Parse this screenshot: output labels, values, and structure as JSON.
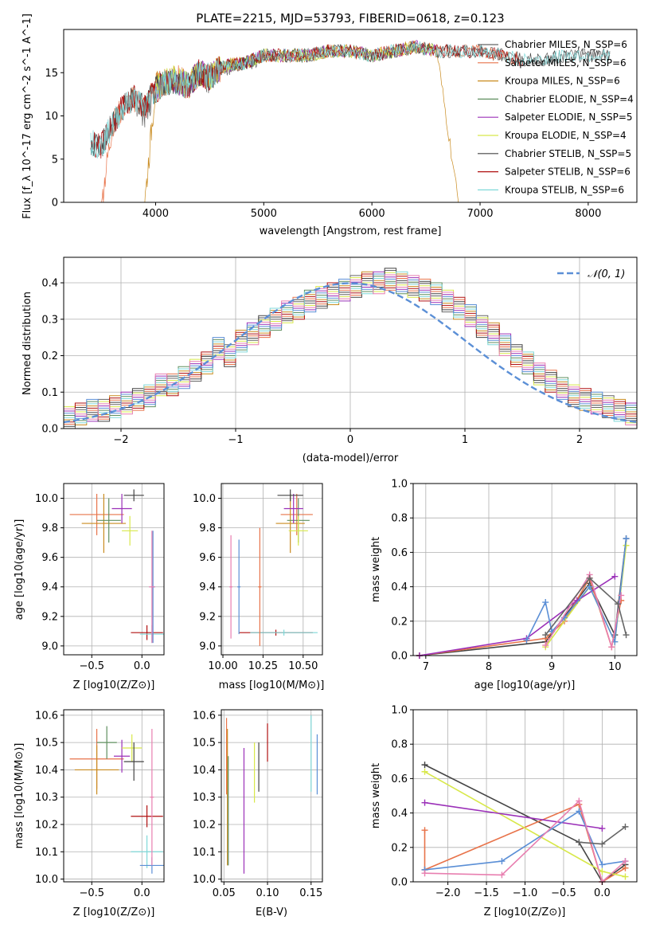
{
  "colors": {
    "axis": "#000000",
    "grid": "#b0b0b0",
    "normal_curve": "#5b8fd6",
    "series": [
      "#666666",
      "#e8734a",
      "#c98b1f",
      "#5f8f5f",
      "#9b30b8",
      "#d8e84a",
      "#444444",
      "#b01010",
      "#7fd8d8",
      "#5b8fd6",
      "#e87fb0"
    ]
  },
  "chart_data": [
    {
      "id": "spectrum",
      "type": "line",
      "title": "PLATE=2215, MJD=53793, FIBERID=0618, z=0.123",
      "xlabel": "wavelength [Angstrom, rest frame]",
      "ylabel": "Flux [f_λ 10^-17 erg cm^-2 s^-1 A^-1]",
      "xlim": [
        3150,
        8450
      ],
      "ylim": [
        0,
        20
      ],
      "xticks": [
        "4000",
        "5000",
        "6000",
        "7000",
        "8000"
      ],
      "yticks": [
        "0",
        "5",
        "10",
        "15"
      ],
      "grid": false,
      "legend_position": "top-right",
      "x": [
        3400,
        3500,
        3600,
        3700,
        3800,
        3900,
        4000,
        4100,
        4200,
        4300,
        4400,
        4500,
        4600,
        4700,
        4800,
        4900,
        5000,
        5200,
        5400,
        5600,
        5800,
        6000,
        6200,
        6400,
        6600,
        6800,
        7000,
        7200,
        7400,
        7600,
        7800,
        8000,
        8200
      ],
      "series": [
        {
          "name": "Chabrier MILES, N_SSP=6",
          "values": [
            7,
            6.5,
            9,
            11,
            12,
            10,
            13,
            14,
            14,
            13,
            15,
            14,
            15.5,
            15.5,
            16,
            16,
            17,
            17,
            17,
            17.5,
            17.5,
            17,
            17.5,
            18,
            17.5,
            17.5,
            17.5,
            17,
            16.5,
            16.5,
            17,
            17,
            17
          ]
        },
        {
          "name": "Salpeter MILES, N_SSP=6",
          "values": [
            null,
            0,
            9,
            11,
            12,
            11,
            13.5,
            14,
            14.5,
            13.5,
            15,
            14.5,
            15.5,
            16,
            16,
            16.5,
            17,
            17,
            17,
            17.5,
            17.5,
            17,
            17.5,
            18,
            17.5,
            17.5,
            17.5,
            17,
            16.5,
            null,
            null,
            null,
            null
          ]
        },
        {
          "name": "Kroupa MILES, N_SSP=6",
          "values": [
            null,
            null,
            null,
            null,
            null,
            0,
            13.5,
            14,
            14.5,
            13.5,
            15,
            14.5,
            15.5,
            16,
            16,
            16.5,
            17,
            17,
            17,
            17.5,
            17.5,
            17,
            17.5,
            18,
            17.5,
            0,
            null,
            null,
            null,
            null,
            null,
            null,
            null
          ]
        },
        {
          "name": "Chabrier ELODIE, N_SSP=4",
          "values": [
            null,
            null,
            null,
            null,
            null,
            null,
            13,
            14,
            14,
            13.5,
            15,
            14.5,
            15.5,
            16,
            16,
            16.5,
            17,
            17,
            17,
            17.5,
            17.5,
            17,
            17.5,
            18,
            17.5,
            null,
            null,
            null,
            null,
            null,
            null,
            null,
            null
          ]
        },
        {
          "name": "Salpeter ELODIE, N_SSP=5",
          "values": [
            null,
            null,
            null,
            null,
            null,
            null,
            13,
            14,
            14,
            13.5,
            15,
            14.5,
            15.5,
            16,
            16,
            16.5,
            17,
            17,
            17,
            17.5,
            17.5,
            17,
            17.5,
            18,
            17.5,
            null,
            null,
            null,
            null,
            null,
            null,
            null,
            null
          ]
        },
        {
          "name": "Kroupa ELODIE, N_SSP=4",
          "values": [
            null,
            null,
            null,
            null,
            null,
            null,
            13.5,
            14,
            14.5,
            13.5,
            15,
            14.5,
            15.5,
            16,
            16,
            16.5,
            17,
            17,
            17,
            17.5,
            17.5,
            17,
            17.5,
            18,
            17.5,
            null,
            null,
            null,
            null,
            null,
            null,
            null,
            null
          ]
        },
        {
          "name": "Chabrier STELIB, N_SSP=5",
          "values": [
            7,
            6.5,
            9,
            11,
            12,
            11,
            13,
            14,
            14,
            13.5,
            15,
            14.5,
            15.5,
            16,
            16,
            16.5,
            17,
            17,
            17,
            17.5,
            17.5,
            17,
            17.5,
            18,
            17.5,
            17.5,
            17.5,
            17,
            16.5,
            16.5,
            17,
            17,
            17
          ]
        },
        {
          "name": "Salpeter STELIB, N_SSP=6",
          "values": [
            7,
            6.5,
            9,
            11,
            12,
            11,
            13,
            14,
            14,
            13.5,
            15,
            14.5,
            15.5,
            16,
            16,
            16.5,
            17,
            17,
            17,
            17.5,
            17.5,
            17,
            17.5,
            18,
            17.5,
            17.5,
            17.5,
            17,
            16.5,
            null,
            null,
            null,
            null
          ]
        },
        {
          "name": "Kroupa STELIB, N_SSP=6",
          "values": [
            7,
            6.5,
            9,
            11,
            12,
            11,
            13,
            14,
            14,
            13.5,
            15,
            14.5,
            15.5,
            16,
            16,
            16.5,
            17,
            17,
            17,
            17.5,
            17.5,
            17,
            17.5,
            18,
            17.5,
            17.5,
            17.5,
            17,
            16.5,
            16.5,
            17,
            17,
            17
          ]
        }
      ]
    },
    {
      "id": "residuals",
      "type": "line",
      "xlabel": "(data-model)/error",
      "ylabel": "Normed distribution",
      "xlim": [
        -2.5,
        2.5
      ],
      "ylim": [
        0,
        0.47
      ],
      "xticks": [
        "−2",
        "−1",
        "0",
        "1",
        "2"
      ],
      "yticks": [
        "0.0",
        "0.1",
        "0.2",
        "0.3",
        "0.4"
      ],
      "grid": true,
      "legend_position": "top-right",
      "legend": [
        "𝒩(0, 1)"
      ],
      "normal_mean": 0,
      "normal_sigma": 1,
      "bin_width": 0.1,
      "bin_start": -2.5,
      "histogram": [
        0.03,
        0.04,
        0.05,
        0.05,
        0.06,
        0.07,
        0.08,
        0.09,
        0.12,
        0.12,
        0.14,
        0.16,
        0.18,
        0.22,
        0.2,
        0.24,
        0.26,
        0.28,
        0.3,
        0.32,
        0.33,
        0.35,
        0.36,
        0.37,
        0.38,
        0.39,
        0.4,
        0.4,
        0.41,
        0.4,
        0.39,
        0.38,
        0.37,
        0.35,
        0.33,
        0.31,
        0.28,
        0.26,
        0.23,
        0.2,
        0.18,
        0.15,
        0.13,
        0.11,
        0.09,
        0.08,
        0.07,
        0.06,
        0.05,
        0.04
      ]
    },
    {
      "id": "age-vs-Z",
      "type": "scatter",
      "xlabel": "Z [log10(Z/Z⊙)]",
      "ylabel": "age [log10(age/yr)]",
      "xlim": [
        -0.78,
        0.22
      ],
      "ylim": [
        8.94,
        10.1
      ],
      "xticks": [
        "−0.5",
        "0.0"
      ],
      "yticks": [
        "9.0",
        "9.2",
        "9.4",
        "9.6",
        "9.8",
        "10.0"
      ],
      "grid": true,
      "points": [
        {
          "x": -0.45,
          "y": 9.89,
          "xerr": 0.27,
          "yerr": 0.14
        },
        {
          "x": -0.38,
          "y": 9.83,
          "xerr": 0.22,
          "yerr": 0.2
        },
        {
          "x": -0.33,
          "y": 9.85,
          "xerr": 0.12,
          "yerr": 0.15
        },
        {
          "x": -0.2,
          "y": 9.93,
          "xerr": 0.1,
          "yerr": 0.1
        },
        {
          "x": -0.12,
          "y": 9.78,
          "xerr": 0.08,
          "yerr": 0.1
        },
        {
          "x": -0.08,
          "y": 10.02,
          "xerr": 0.1,
          "yerr": 0.04
        },
        {
          "x": 0.05,
          "y": 9.09,
          "xerr": 0.16,
          "yerr": 0.05
        },
        {
          "x": 0.1,
          "y": 9.08,
          "xerr": 0.12,
          "yerr": 0.06
        },
        {
          "x": 0.11,
          "y": 9.4,
          "xerr": 0.02,
          "yerr": 0.38
        },
        {
          "x": 0.1,
          "y": 9.4,
          "xerr": 0.03,
          "yerr": 0.38
        }
      ]
    },
    {
      "id": "age-vs-mass",
      "type": "scatter",
      "xlabel": "mass [log10(M/M⊙)]",
      "ylabel": "",
      "xlim": [
        9.99,
        10.62
      ],
      "ylim": [
        8.94,
        10.1
      ],
      "xticks": [
        "10.00",
        "10.25",
        "10.50"
      ],
      "yticks": [
        "9.0",
        "9.2",
        "9.4",
        "9.6",
        "9.8",
        "10.0"
      ],
      "grid": true,
      "points": [
        {
          "x": 10.46,
          "y": 9.89,
          "xerr": 0.1,
          "yerr": 0.14
        },
        {
          "x": 10.42,
          "y": 9.83,
          "xerr": 0.09,
          "yerr": 0.2
        },
        {
          "x": 10.47,
          "y": 9.85,
          "xerr": 0.07,
          "yerr": 0.15
        },
        {
          "x": 10.44,
          "y": 9.93,
          "xerr": 0.06,
          "yerr": 0.1
        },
        {
          "x": 10.47,
          "y": 9.78,
          "xerr": 0.06,
          "yerr": 0.1
        },
        {
          "x": 10.42,
          "y": 10.02,
          "xerr": 0.08,
          "yerr": 0.04
        },
        {
          "x": 10.33,
          "y": 9.09,
          "xerr": 0.23,
          "yerr": 0.02
        },
        {
          "x": 10.38,
          "y": 9.09,
          "xerr": 0.21,
          "yerr": 0.02
        },
        {
          "x": 10.1,
          "y": 9.4,
          "xerr": 0.01,
          "yerr": 0.32
        },
        {
          "x": 10.05,
          "y": 9.4,
          "xerr": 0.01,
          "yerr": 0.35
        },
        {
          "x": 10.23,
          "y": 9.4,
          "xerr": 0.01,
          "yerr": 0.4
        }
      ]
    },
    {
      "id": "weight-vs-age",
      "type": "line",
      "xlabel": "age [log10(age/yr)]",
      "ylabel": "mass weight",
      "xlim": [
        6.8,
        10.35
      ],
      "ylim": [
        0,
        1
      ],
      "xticks": [
        "7",
        "8",
        "9",
        "10"
      ],
      "yticks": [
        "0.0",
        "0.2",
        "0.4",
        "0.6",
        "0.8",
        "1.0"
      ],
      "grid": true,
      "series": [
        {
          "x": [
            6.9,
            8.9,
            9.6,
            10.0,
            10.18
          ],
          "values": [
            0.0,
            0.08,
            0.42,
            0.12,
            0.68
          ]
        },
        {
          "x": [
            6.9,
            8.9,
            9.2,
            9.6,
            9.95,
            10.1
          ],
          "values": [
            0.0,
            0.1,
            0.2,
            0.45,
            0.05,
            0.32
          ]
        },
        {
          "x": [
            8.9,
            9.6,
            10.0,
            10.18
          ],
          "values": [
            0.05,
            0.4,
            0.08,
            0.64
          ]
        },
        {
          "x": [
            6.9,
            8.6,
            9.4,
            10.0
          ],
          "values": [
            0.0,
            0.1,
            0.32,
            0.46
          ]
        },
        {
          "x": [
            8.6,
            8.9,
            9.0,
            9.2,
            9.6,
            10.0,
            10.18
          ],
          "values": [
            0.09,
            0.31,
            0.14,
            0.22,
            0.4,
            0.08,
            0.68
          ]
        },
        {
          "x": [
            8.9,
            9.6,
            9.95,
            10.1
          ],
          "values": [
            0.06,
            0.47,
            0.05,
            0.35
          ]
        },
        {
          "x": [
            8.9,
            9.6,
            10.05,
            10.18
          ],
          "values": [
            0.12,
            0.45,
            0.3,
            0.12
          ]
        }
      ]
    },
    {
      "id": "mass-vs-Z",
      "type": "scatter",
      "xlabel": "Z [log10(Z/Z⊙)]",
      "ylabel": "mass [log10(M/M⊙)]",
      "xlim": [
        -0.78,
        0.22
      ],
      "ylim": [
        9.99,
        10.62
      ],
      "xticks": [
        "−0.5",
        "0.0"
      ],
      "yticks": [
        "10.0",
        "10.1",
        "10.2",
        "10.3",
        "10.4",
        "10.5",
        "10.6"
      ],
      "grid": true,
      "points": [
        {
          "x": -0.45,
          "y": 10.44,
          "xerr": 0.27,
          "yerr": 0.11
        },
        {
          "x": -0.45,
          "y": 10.4,
          "xerr": 0.22,
          "yerr": 0.09
        },
        {
          "x": -0.35,
          "y": 10.5,
          "xerr": 0.1,
          "yerr": 0.06
        },
        {
          "x": -0.2,
          "y": 10.45,
          "xerr": 0.08,
          "yerr": 0.06
        },
        {
          "x": -0.1,
          "y": 10.48,
          "xerr": 0.1,
          "yerr": 0.05
        },
        {
          "x": -0.08,
          "y": 10.43,
          "xerr": 0.1,
          "yerr": 0.07
        },
        {
          "x": 0.05,
          "y": 10.23,
          "xerr": 0.16,
          "yerr": 0.04
        },
        {
          "x": 0.05,
          "y": 10.1,
          "xerr": 0.16,
          "yerr": 0.06
        },
        {
          "x": 0.1,
          "y": 10.05,
          "xerr": 0.12,
          "yerr": 0.03
        },
        {
          "x": 0.1,
          "y": 10.3,
          "xerr": 0.02,
          "yerr": 0.25
        }
      ]
    },
    {
      "id": "mass-vs-ebv",
      "type": "scatter",
      "xlabel": "E(B-V)",
      "ylabel": "",
      "xlim": [
        0.047,
        0.163
      ],
      "ylim": [
        9.99,
        10.62
      ],
      "xticks": [
        "0.05",
        "0.10",
        "0.15"
      ],
      "yticks": [
        "10.0",
        "10.1",
        "10.2",
        "10.3",
        "10.4",
        "10.5",
        "10.6"
      ],
      "grid": true,
      "points": [
        {
          "x": 0.053,
          "y": 10.45,
          "yerr": 0.14
        },
        {
          "x": 0.054,
          "y": 10.3,
          "yerr": 0.25
        },
        {
          "x": 0.055,
          "y": 10.25,
          "yerr": 0.2
        },
        {
          "x": 0.073,
          "y": 10.25,
          "yerr": 0.23
        },
        {
          "x": 0.085,
          "y": 10.39,
          "yerr": 0.11
        },
        {
          "x": 0.09,
          "y": 10.41,
          "yerr": 0.09
        },
        {
          "x": 0.1,
          "y": 10.5,
          "yerr": 0.07
        },
        {
          "x": 0.15,
          "y": 10.46,
          "yerr": 0.14
        },
        {
          "x": 0.157,
          "y": 10.42,
          "yerr": 0.11
        }
      ]
    },
    {
      "id": "weight-vs-Z",
      "type": "line",
      "xlabel": "Z [log10(Z/Z⊙)]",
      "ylabel": "mass weight",
      "xlim": [
        -2.45,
        0.45
      ],
      "ylim": [
        0,
        1
      ],
      "xticks": [
        "−2.0",
        "−1.5",
        "−1.0",
        "−0.5",
        "0.0"
      ],
      "yticks": [
        "0.0",
        "0.2",
        "0.4",
        "0.6",
        "0.8",
        "1.0"
      ],
      "grid": true,
      "series": [
        {
          "x": [
            -2.3,
            -0.3,
            0.0,
            0.3
          ],
          "values": [
            0.68,
            0.23,
            0.0,
            0.1
          ]
        },
        {
          "x": [
            -2.3,
            -2.3,
            -0.3,
            0.0,
            0.3
          ],
          "values": [
            0.3,
            0.07,
            0.45,
            0.0,
            0.08
          ]
        },
        {
          "x": [
            -2.3,
            0.0,
            0.3
          ],
          "values": [
            0.64,
            0.06,
            0.03
          ]
        },
        {
          "x": [
            -2.3,
            0.0
          ],
          "values": [
            0.46,
            0.31
          ]
        },
        {
          "x": [
            -2.3,
            -1.3,
            -0.3,
            0.0,
            0.3
          ],
          "values": [
            0.07,
            0.12,
            0.41,
            0.1,
            0.12
          ]
        },
        {
          "x": [
            -2.3,
            -1.3,
            -0.3,
            0.0,
            0.3
          ],
          "values": [
            0.05,
            0.04,
            0.47,
            0.0,
            0.12
          ]
        },
        {
          "x": [
            -0.3,
            0.0,
            0.3
          ],
          "values": [
            0.23,
            0.22,
            0.32
          ]
        }
      ]
    }
  ]
}
